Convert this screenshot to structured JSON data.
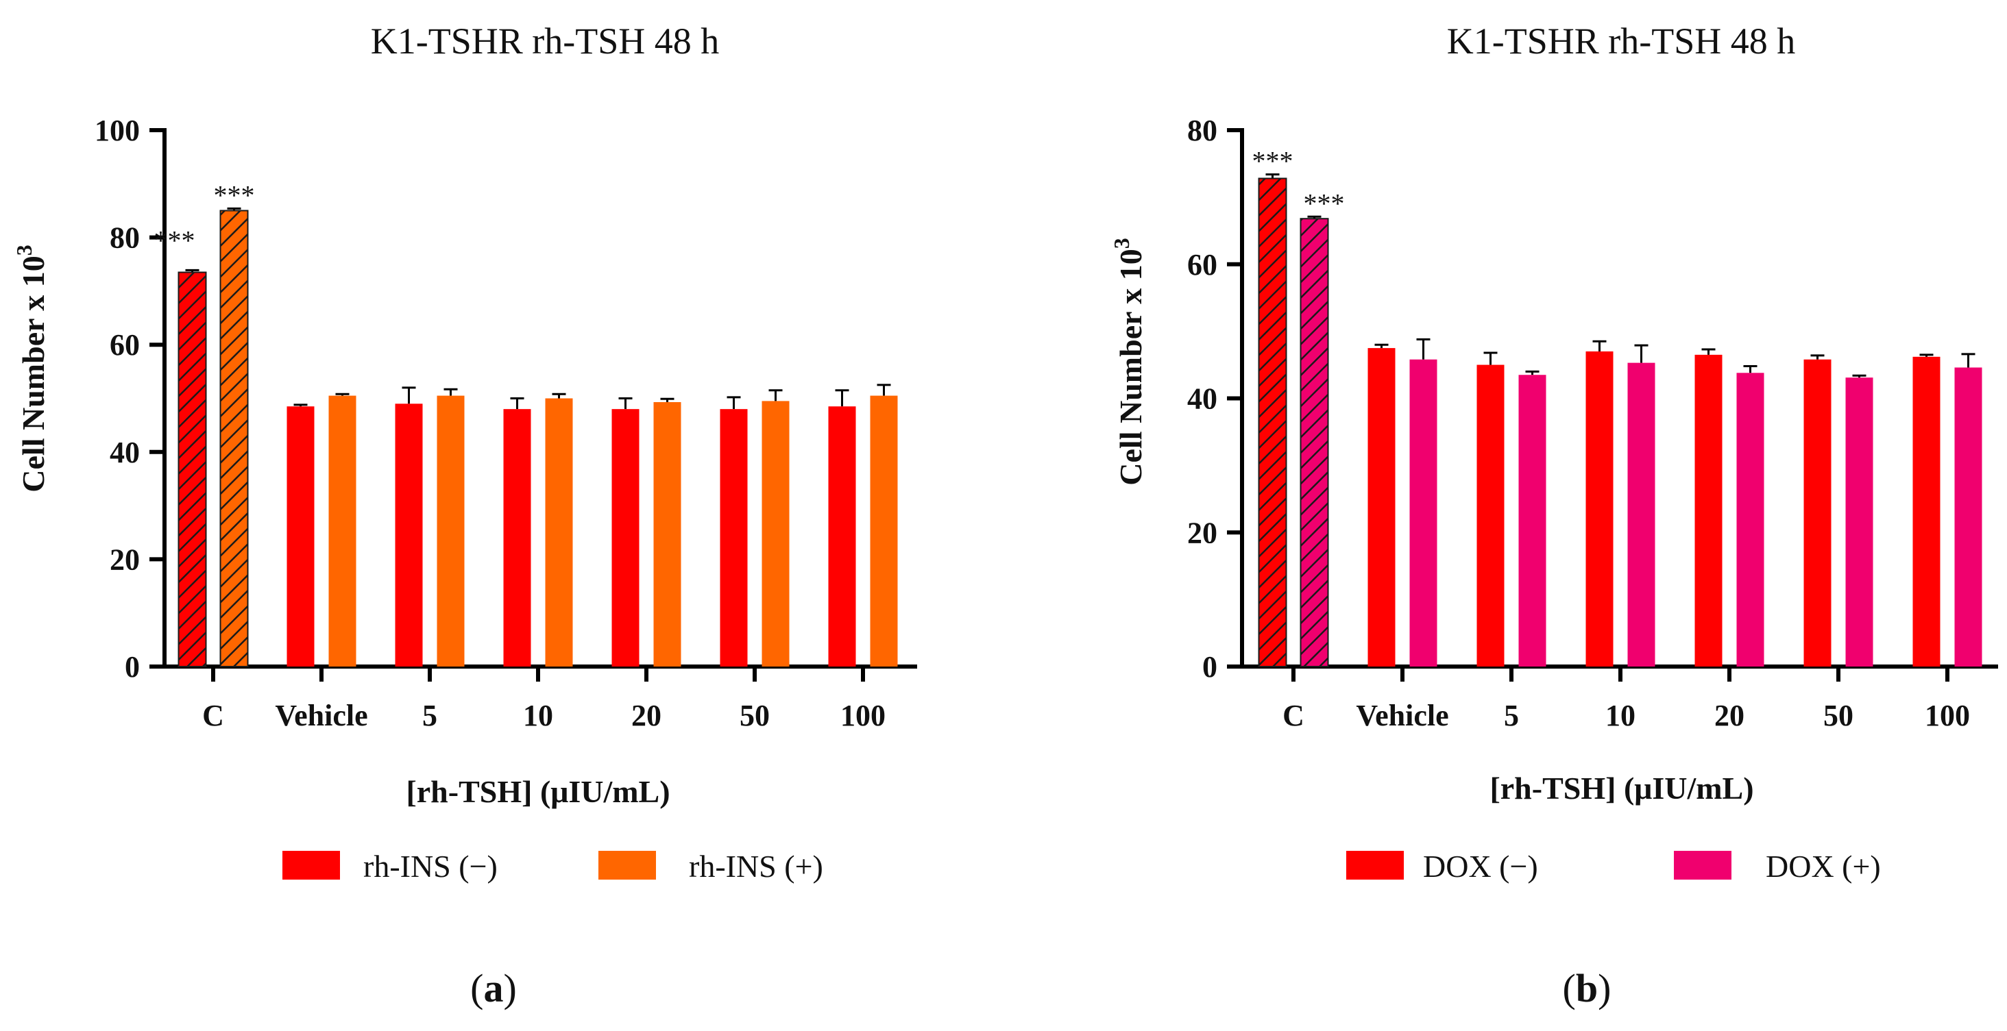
{
  "panels": [
    {
      "panel_label": "(a)",
      "chart_data": {
        "type": "bar",
        "title": "K1-TSHR rh-TSH 48 h",
        "xlabel": "[rh-TSH] (μIU/mL)",
        "ylabel": "Cell Number x 10",
        "ylabel_sup": "3",
        "ylim": [
          0,
          100
        ],
        "yticks": [
          0,
          20,
          40,
          60,
          80,
          100
        ],
        "categories": [
          "C",
          "Vehicle",
          "5",
          "10",
          "20",
          "50",
          "100"
        ],
        "legend_position": "bottom",
        "series": [
          {
            "name": "rh-INS (−)",
            "color": "#ff0000",
            "values": [
              73.5,
              48.5,
              49,
              48,
              48,
              48,
              48.5
            ],
            "errors": [
              0.4,
              0.3,
              3,
              2,
              2,
              2.2,
              3
            ]
          },
          {
            "name": "rh-INS (+)",
            "color": "#ff6600",
            "values": [
              85,
              50.5,
              50.5,
              50,
              49.3,
              49.5,
              50.5
            ],
            "errors": [
              0.4,
              0.3,
              1.2,
              0.8,
              0.6,
              2,
              2
            ]
          }
        ],
        "hatched_category": "C",
        "annotations": [
          {
            "category": "C",
            "series": 0,
            "text": "***"
          },
          {
            "category": "C",
            "series": 1,
            "text": "***"
          }
        ]
      }
    },
    {
      "panel_label": "(b)",
      "chart_data": {
        "type": "bar",
        "title": "K1-TSHR rh-TSH 48 h",
        "xlabel": "[rh-TSH] (μIU/mL)",
        "ylabel": "Cell Number x 10",
        "ylabel_sup": "3",
        "ylim": [
          0,
          80
        ],
        "yticks": [
          0,
          20,
          40,
          60,
          80
        ],
        "categories": [
          "C",
          "Vehicle",
          "5",
          "10",
          "20",
          "50",
          "100"
        ],
        "legend_position": "bottom",
        "series": [
          {
            "name": "DOX (−)",
            "color": "#ff0000",
            "values": [
              72.8,
              47.5,
              45,
              47,
              46.5,
              45.8,
              46.2
            ],
            "errors": [
              0.6,
              0.5,
              1.8,
              1.5,
              0.8,
              0.6,
              0.3
            ]
          },
          {
            "name": "DOX (+)",
            "color": "#f0006e",
            "values": [
              66.8,
              45.8,
              43.5,
              45.3,
              43.8,
              43.1,
              44.6
            ],
            "errors": [
              0.3,
              3,
              0.5,
              2.6,
              1,
              0.3,
              2
            ]
          }
        ],
        "hatched_category": "C",
        "annotations": [
          {
            "category": "C",
            "series": 0,
            "text": "***"
          },
          {
            "category": "C",
            "series": 1,
            "text": "***"
          }
        ]
      }
    }
  ]
}
